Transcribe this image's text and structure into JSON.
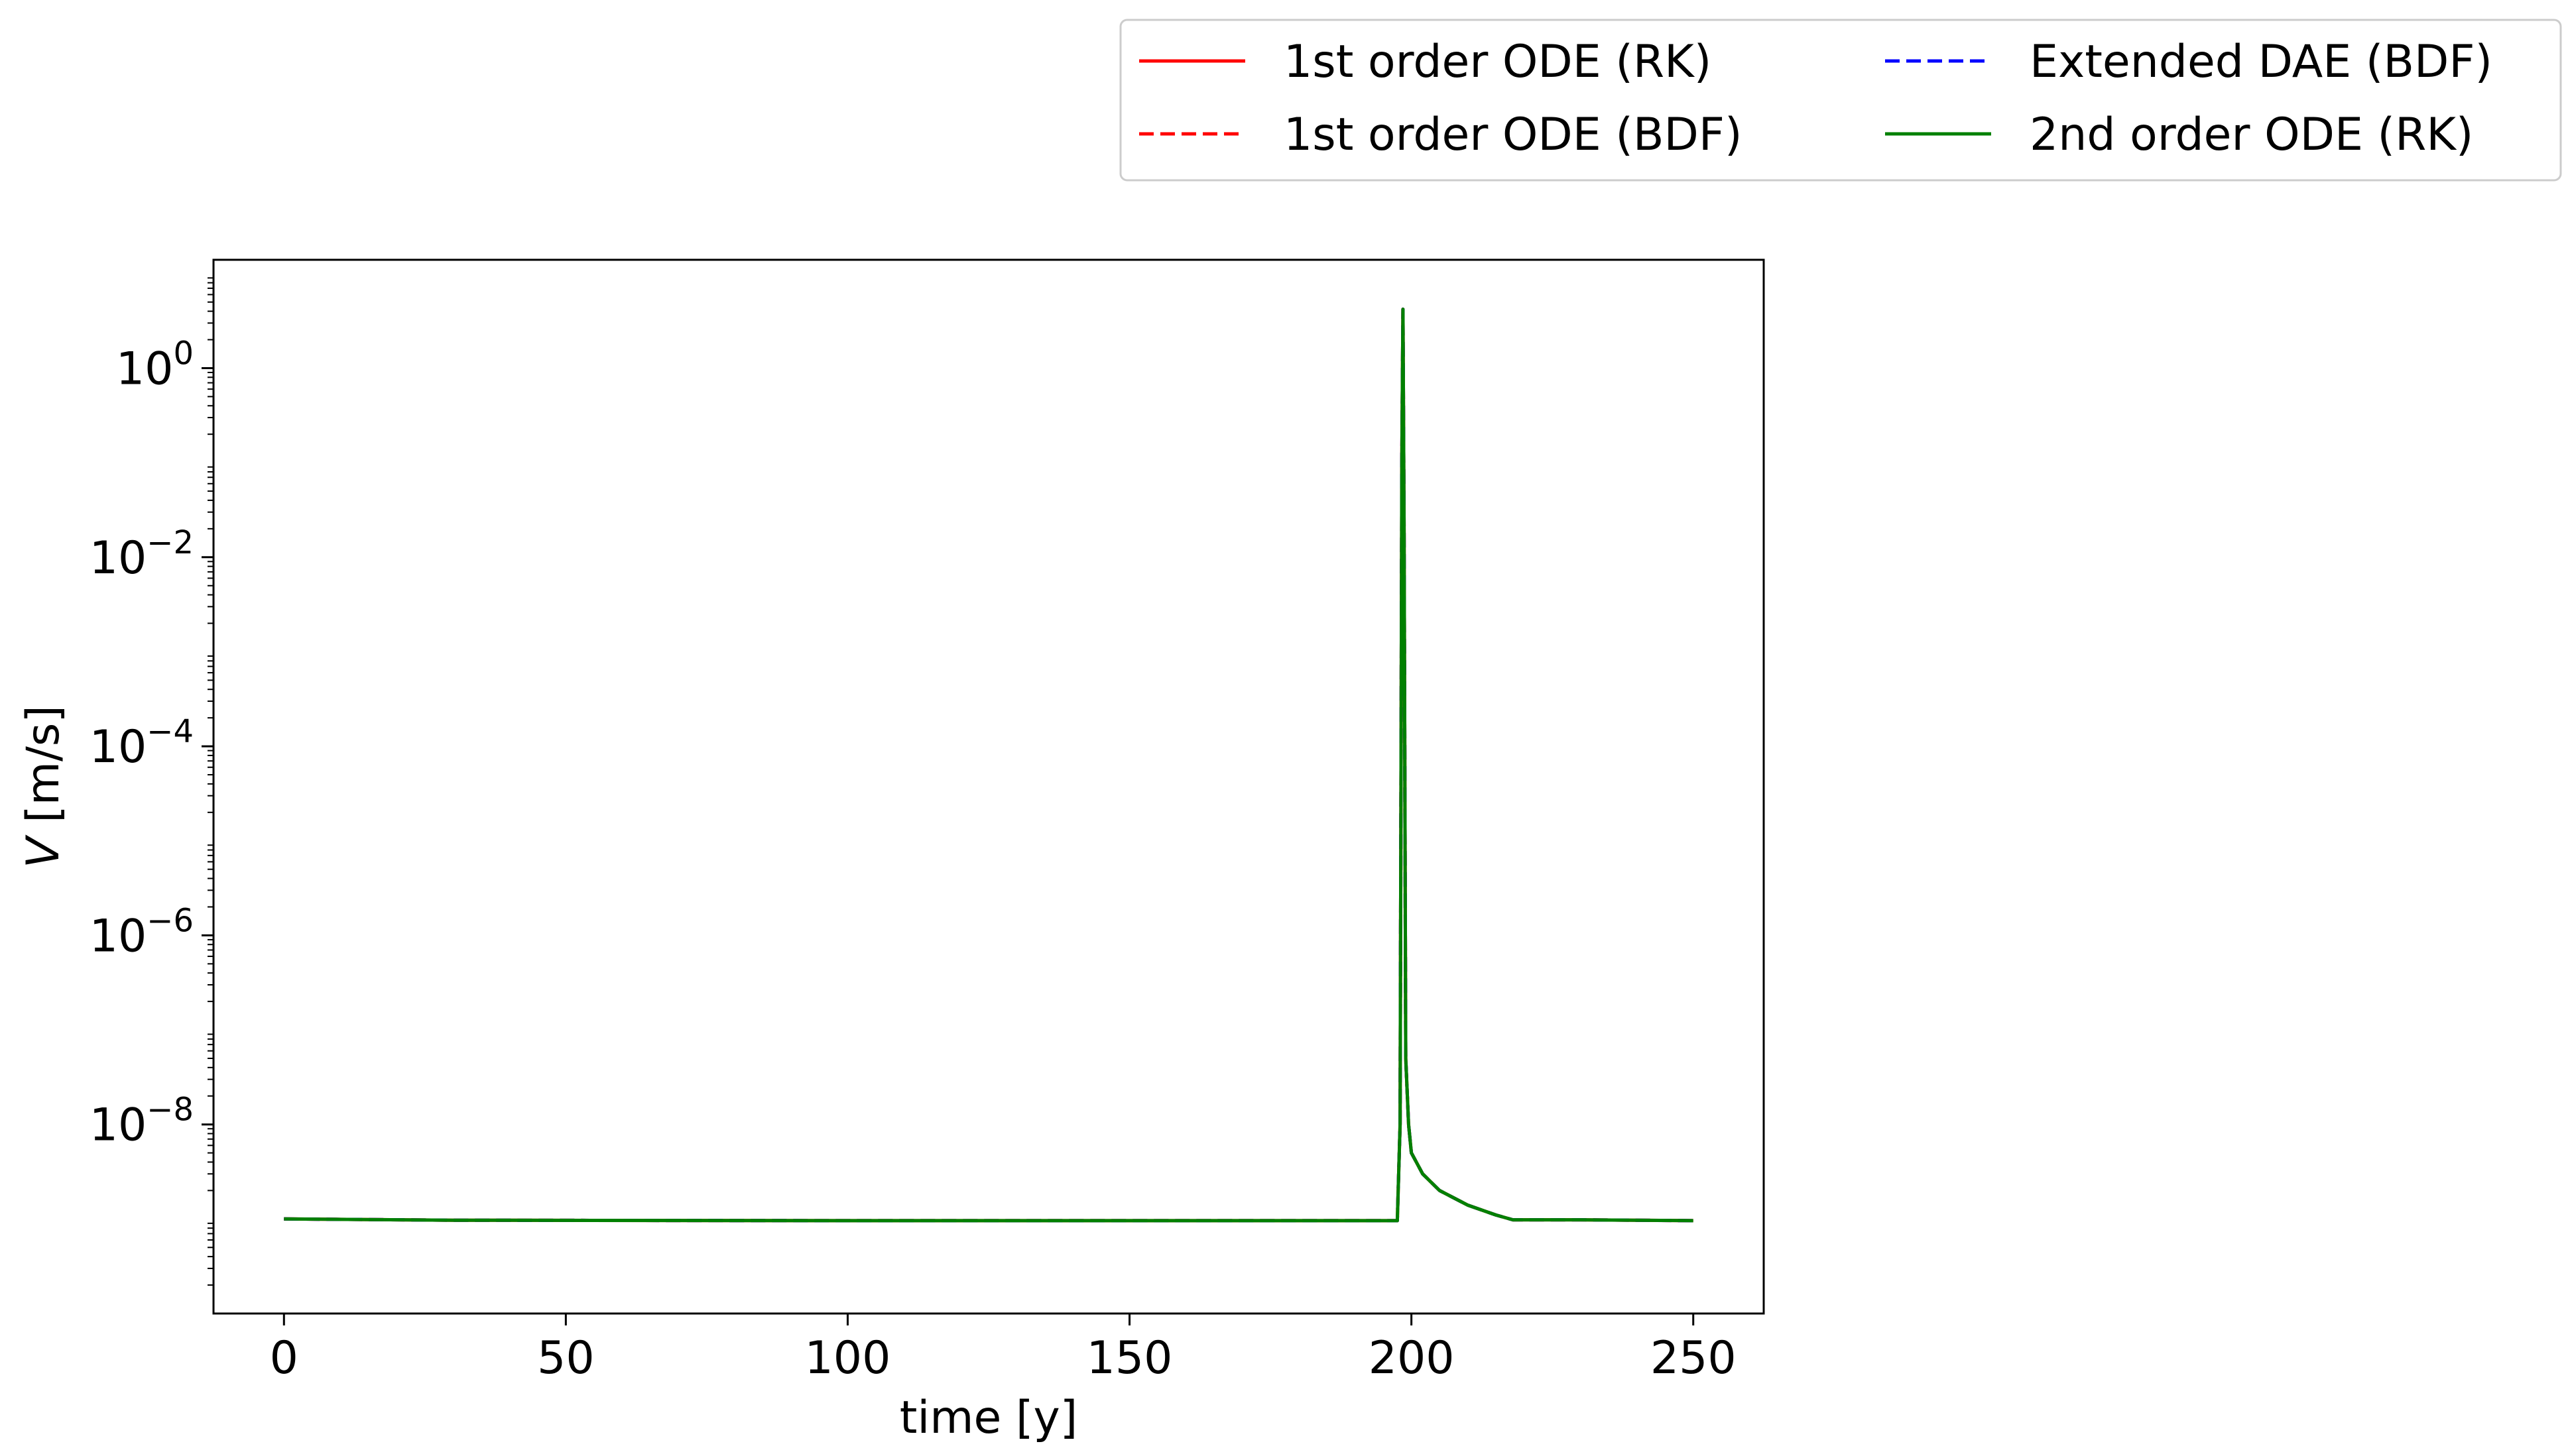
{
  "chart_data": {
    "type": "line",
    "xlabel": "time [y]",
    "ylabel": {
      "italic": "V",
      "rest": " [m/s]"
    },
    "xlim": [
      -12.5,
      262.5
    ],
    "ylim": [
      1e-10,
      14
    ],
    "yscale": "log",
    "grid": false,
    "x_ticks": [
      0,
      50,
      100,
      150,
      200,
      250
    ],
    "x_tick_labels": [
      "0",
      "50",
      "100",
      "150",
      "200",
      "250"
    ],
    "y_ticks": [
      1e-08,
      1e-06,
      0.0001,
      0.01,
      1
    ],
    "y_tick_labels": [
      {
        "base": "10",
        "exp": "−8"
      },
      {
        "base": "10",
        "exp": "−6"
      },
      {
        "base": "10",
        "exp": "−4"
      },
      {
        "base": "10",
        "exp": "−2"
      },
      {
        "base": "10",
        "exp": "0"
      }
    ],
    "legend": {
      "placement": "top-right outside",
      "columns": 2
    },
    "series": [
      {
        "name": "1st order ODE (RK)",
        "color": "#ff0000",
        "dash": "solid",
        "x": [
          0,
          30,
          100,
          150,
          197.5,
          198.0,
          198.3,
          198.5,
          198.7,
          199.0,
          199.5,
          200,
          202,
          205,
          210,
          215,
          218,
          230,
          250
        ],
        "y": [
          1e-09,
          9.7e-10,
          9.6e-10,
          9.6e-10,
          9.6e-10,
          1e-08,
          0.1,
          4.2,
          0.02,
          5e-08,
          1e-08,
          5e-09,
          3e-09,
          2e-09,
          1.4e-09,
          1.1e-09,
          9.8e-10,
          9.8e-10,
          9.6e-10
        ]
      },
      {
        "name": "1st order ODE (BDF)",
        "color": "#ff0000",
        "dash": "dashed",
        "x": [
          0,
          30,
          100,
          150,
          197.5,
          198.0,
          198.3,
          198.5,
          198.7,
          199.0,
          199.5,
          200,
          202,
          205,
          210,
          215,
          218,
          230,
          250
        ],
        "y": [
          1e-09,
          9.7e-10,
          9.6e-10,
          9.6e-10,
          9.6e-10,
          1e-08,
          0.1,
          4.2,
          0.02,
          5e-08,
          1e-08,
          5e-09,
          3e-09,
          2e-09,
          1.4e-09,
          1.1e-09,
          9.8e-10,
          9.8e-10,
          9.6e-10
        ]
      },
      {
        "name": "Extended DAE (BDF)",
        "color": "#0000ff",
        "dash": "dashed",
        "x": [
          0,
          30,
          100,
          150,
          197.5,
          198.0,
          198.3,
          198.5,
          198.7,
          199.0,
          199.5,
          200,
          202,
          205,
          210,
          215,
          218,
          230,
          250
        ],
        "y": [
          1e-09,
          9.7e-10,
          9.6e-10,
          9.6e-10,
          9.6e-10,
          1e-08,
          0.1,
          4.2,
          0.02,
          5e-08,
          1e-08,
          5e-09,
          3e-09,
          2e-09,
          1.4e-09,
          1.1e-09,
          9.8e-10,
          9.8e-10,
          9.6e-10
        ]
      },
      {
        "name": "2nd order ODE (RK)",
        "color": "#008000",
        "dash": "solid",
        "x": [
          0,
          30,
          100,
          150,
          197.5,
          198.0,
          198.3,
          198.5,
          198.7,
          199.0,
          199.5,
          200,
          202,
          205,
          210,
          215,
          218,
          230,
          250
        ],
        "y": [
          1e-09,
          9.7e-10,
          9.6e-10,
          9.6e-10,
          9.6e-10,
          1e-08,
          0.1,
          4.2,
          0.02,
          5e-08,
          1e-08,
          5e-09,
          3e-09,
          2e-09,
          1.4e-09,
          1.1e-09,
          9.8e-10,
          9.8e-10,
          9.6e-10
        ]
      }
    ]
  }
}
